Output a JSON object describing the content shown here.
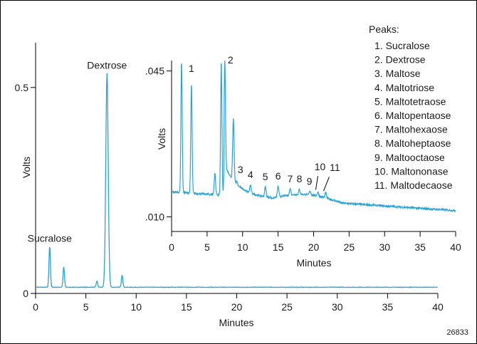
{
  "figure_id": "26833",
  "colors": {
    "trace": "#2aa4d6",
    "axis": "#000000",
    "border": "#000000"
  },
  "chart_data": [
    {
      "type": "line",
      "role": "main",
      "xlabel": "Minutes",
      "ylabel": "Volts",
      "xlim": [
        0,
        40
      ],
      "ylim": [
        0,
        0.6
      ],
      "x_ticks": [
        0,
        5,
        10,
        15,
        20,
        25,
        30,
        35,
        40
      ],
      "y_ticks": [
        {
          "value": 0,
          "label": "0"
        },
        {
          "value": 0.5,
          "label": "0.5"
        }
      ],
      "grid": false,
      "baseline": 0.015,
      "peaks": [
        {
          "x": 1.4,
          "y": 0.115
        },
        {
          "x": 2.8,
          "y": 0.065
        },
        {
          "x": 6.1,
          "y": 0.03
        },
        {
          "x": 7.1,
          "y": 0.535
        },
        {
          "x": 8.6,
          "y": 0.045
        }
      ],
      "annotations": [
        {
          "text": "Sucralose",
          "x": 1.4,
          "y": 0.115
        },
        {
          "text": "Dextrose",
          "x": 7.1,
          "y": 0.535
        }
      ]
    },
    {
      "type": "line",
      "role": "inset",
      "xlabel": "Minutes",
      "ylabel": "Volts",
      "xlim": [
        0,
        40
      ],
      "ylim": [
        0.0065,
        0.0475
      ],
      "x_ticks": [
        0,
        5,
        10,
        15,
        20,
        25,
        30,
        35,
        40
      ],
      "y_ticks": [
        {
          "value": 0.01,
          "label": ".010"
        },
        {
          "value": 0.045,
          "label": ".045"
        }
      ],
      "grid": false,
      "baseline_start": 0.016,
      "baseline_end": 0.0115,
      "peaks": [
        {
          "x": 1.4,
          "y": 0.0475
        },
        {
          "x": 2.8,
          "y": 0.042
        },
        {
          "x": 6.1,
          "y": 0.0205
        },
        {
          "x": 7.0,
          "y": 0.0475
        },
        {
          "x": 7.5,
          "y": 0.0475
        },
        {
          "x": 8.7,
          "y": 0.0335
        },
        {
          "x": 9.2,
          "y": 0.0185
        },
        {
          "x": 11.1,
          "y": 0.0176
        },
        {
          "x": 13.2,
          "y": 0.0172
        },
        {
          "x": 15.0,
          "y": 0.0173
        },
        {
          "x": 16.7,
          "y": 0.0168
        },
        {
          "x": 18.0,
          "y": 0.0166
        },
        {
          "x": 19.5,
          "y": 0.0162
        },
        {
          "x": 20.6,
          "y": 0.016
        },
        {
          "x": 21.7,
          "y": 0.0158
        }
      ],
      "peak_labels": [
        {
          "text": "1",
          "x": 2.8,
          "y": 0.0448
        },
        {
          "text": "2",
          "x": 8.3,
          "y": 0.0468
        },
        {
          "text": "3",
          "x": 9.7,
          "y": 0.0205
        },
        {
          "text": "4",
          "x": 11.1,
          "y": 0.0193
        },
        {
          "text": "5",
          "x": 13.2,
          "y": 0.0188
        },
        {
          "text": "6",
          "x": 15.0,
          "y": 0.019
        },
        {
          "text": "7",
          "x": 16.7,
          "y": 0.0183
        },
        {
          "text": "8",
          "x": 18.0,
          "y": 0.0183
        },
        {
          "text": "9",
          "x": 19.4,
          "y": 0.0177
        },
        {
          "text": "10",
          "x": 20.9,
          "y": 0.0212
        },
        {
          "text": "11",
          "x": 23.0,
          "y": 0.021
        }
      ],
      "leader_lines": [
        {
          "from": [
            20.6,
            0.0198
          ],
          "to": [
            20.3,
            0.0165
          ]
        },
        {
          "from": [
            22.2,
            0.0196
          ],
          "to": [
            21.4,
            0.0162
          ]
        }
      ]
    }
  ],
  "legend": {
    "title": "Peaks:",
    "items": [
      "1. Sucralose",
      "2. Dextrose",
      "3. Maltose",
      "4. Maltotriose",
      "5. Maltotetraose",
      "6. Maltopentaose",
      "7. Maltohexaose",
      "8. Maltoheptaose",
      "9. Maltooctaose",
      "10. Maltononase",
      "11. Maltodecaose"
    ]
  }
}
